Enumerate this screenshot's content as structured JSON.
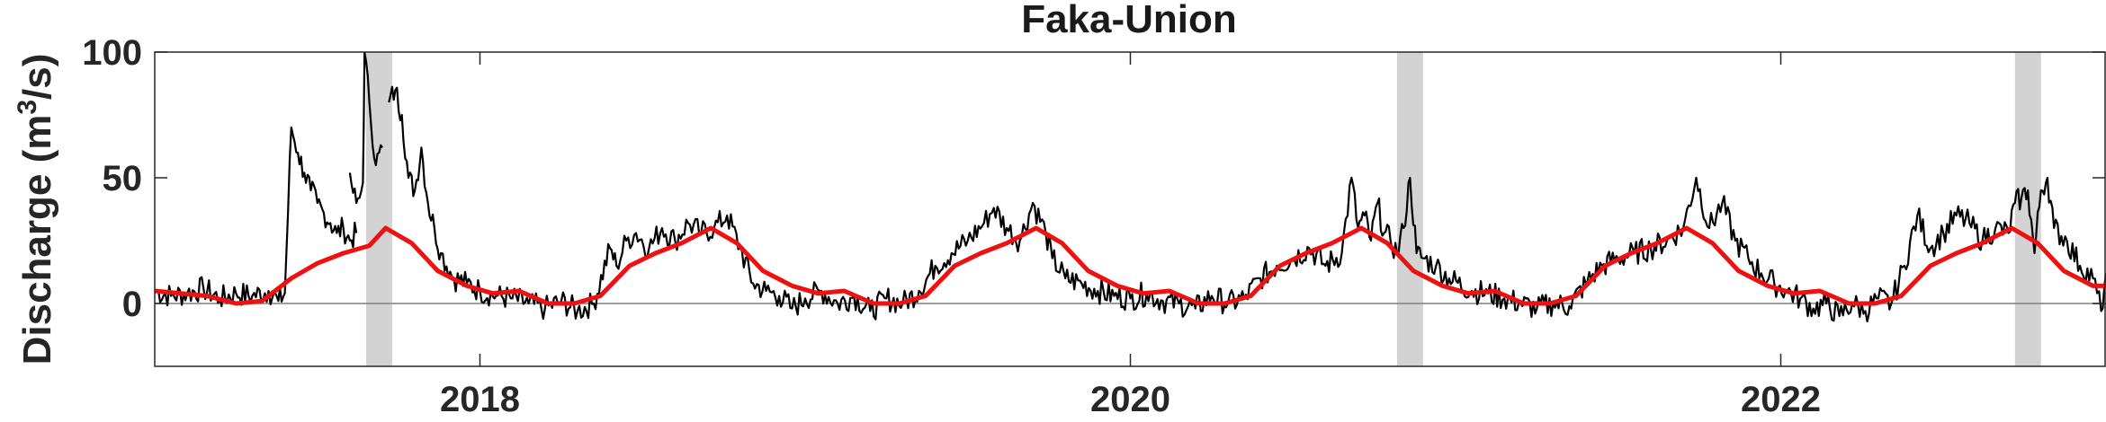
{
  "chart_data": {
    "type": "line",
    "title": "Faka-Union",
    "xlabel": "",
    "ylabel": "Discharge (m",
    "ylabel_sup": "3",
    "ylabel_tail": "/s)",
    "xlim": [
      2017.0,
      2023.0
    ],
    "ylim": [
      -25,
      100
    ],
    "x_ticks": [
      2018,
      2020,
      2022
    ],
    "x_tick_labels": [
      "2018",
      "2020",
      "2022"
    ],
    "y_ticks": [
      0,
      50,
      100
    ],
    "y_tick_labels": [
      "0",
      "50",
      "100"
    ],
    "grid": false,
    "legend": "none",
    "zero_line": true,
    "shaded_periods": [
      {
        "start": 2017.65,
        "end": 2017.73
      },
      {
        "start": 2020.82,
        "end": 2020.9
      },
      {
        "start": 2022.72,
        "end": 2022.8
      }
    ],
    "colors": {
      "observed": "#000000",
      "seasonal": "#ee1111",
      "shade": "#d3d3d3",
      "axes": "#262626",
      "zero_line": "#7f7f7f"
    },
    "series": [
      {
        "id": "observed",
        "style": "noisy",
        "points": [
          [
            2017.0,
            5
          ],
          [
            2017.05,
            3
          ],
          [
            2017.1,
            4
          ],
          [
            2017.15,
            6
          ],
          [
            2017.2,
            2
          ],
          [
            2017.25,
            4
          ],
          [
            2017.3,
            3
          ],
          [
            2017.35,
            5
          ],
          [
            2017.38,
            1
          ],
          [
            2017.4,
            4
          ],
          [
            2017.42,
            70
          ],
          [
            2017.44,
            60
          ],
          [
            2017.46,
            52
          ],
          [
            2017.48,
            45
          ],
          [
            2017.5,
            40
          ],
          [
            2017.52,
            36
          ],
          [
            2017.54,
            32
          ],
          [
            2017.56,
            28
          ],
          [
            2017.58,
            30
          ],
          [
            2017.6,
            25
          ],
          [
            2017.62,
            28
          ],
          null,
          [
            2017.6,
            52
          ],
          [
            2017.61,
            44
          ],
          [
            2017.62,
            40
          ],
          [
            2017.63,
            42
          ],
          [
            2017.64,
            48
          ],
          [
            2017.645,
            100
          ],
          [
            2017.66,
            80
          ],
          [
            2017.68,
            55
          ],
          [
            2017.69,
            60
          ],
          [
            2017.7,
            62
          ],
          null,
          [
            2017.72,
            80
          ],
          [
            2017.74,
            85
          ],
          [
            2017.76,
            75
          ],
          [
            2017.78,
            50
          ],
          [
            2017.8,
            45
          ],
          [
            2017.82,
            62
          ],
          [
            2017.84,
            40
          ],
          [
            2017.86,
            30
          ],
          [
            2017.88,
            20
          ],
          [
            2017.92,
            10
          ],
          [
            2017.96,
            8
          ],
          [
            2018.0,
            5
          ],
          [
            2018.05,
            3
          ],
          [
            2018.1,
            2
          ],
          [
            2018.15,
            0
          ],
          [
            2018.2,
            -2
          ],
          [
            2018.25,
            1
          ],
          [
            2018.3,
            -3
          ],
          [
            2018.35,
            0
          ],
          [
            2018.4,
            22
          ],
          [
            2018.42,
            15
          ],
          [
            2018.45,
            25
          ],
          [
            2018.48,
            28
          ],
          [
            2018.52,
            22
          ],
          [
            2018.56,
            30
          ],
          [
            2018.6,
            25
          ],
          [
            2018.64,
            32
          ],
          [
            2018.68,
            28
          ],
          [
            2018.72,
            30
          ],
          [
            2018.76,
            35
          ],
          [
            2018.8,
            22
          ],
          [
            2018.84,
            8
          ],
          [
            2018.88,
            5
          ],
          [
            2018.92,
            3
          ],
          [
            2018.96,
            -2
          ],
          [
            2019.0,
            2
          ],
          [
            2019.05,
            5
          ],
          [
            2019.1,
            0
          ],
          [
            2019.15,
            3
          ],
          [
            2019.2,
            -3
          ],
          [
            2019.25,
            2
          ],
          [
            2019.3,
            0
          ],
          [
            2019.35,
            5
          ],
          [
            2019.4,
            15
          ],
          [
            2019.45,
            20
          ],
          [
            2019.5,
            25
          ],
          [
            2019.55,
            32
          ],
          [
            2019.58,
            38
          ],
          [
            2019.62,
            30
          ],
          [
            2019.66,
            25
          ],
          [
            2019.7,
            40
          ],
          [
            2019.74,
            28
          ],
          [
            2019.76,
            18
          ],
          [
            2019.8,
            10
          ],
          [
            2019.85,
            8
          ],
          [
            2019.9,
            5
          ],
          [
            2019.95,
            3
          ],
          [
            2020.0,
            2
          ],
          [
            2020.05,
            4
          ],
          [
            2020.1,
            1
          ],
          [
            2020.15,
            0
          ],
          [
            2020.2,
            -2
          ],
          [
            2020.25,
            3
          ],
          [
            2020.3,
            0
          ],
          [
            2020.35,
            2
          ],
          [
            2020.4,
            10
          ],
          [
            2020.45,
            15
          ],
          [
            2020.5,
            18
          ],
          [
            2020.55,
            22
          ],
          [
            2020.6,
            15
          ],
          [
            2020.65,
            20
          ],
          [
            2020.68,
            50
          ],
          [
            2020.7,
            30
          ],
          [
            2020.72,
            35
          ],
          [
            2020.74,
            25
          ],
          [
            2020.76,
            40
          ],
          [
            2020.78,
            28
          ],
          [
            2020.8,
            25
          ],
          [
            2020.82,
            20
          ],
          [
            2020.84,
            30
          ],
          [
            2020.86,
            50
          ],
          [
            2020.88,
            20
          ],
          [
            2020.9,
            18
          ],
          [
            2020.94,
            15
          ],
          [
            2020.98,
            10
          ],
          [
            2021.05,
            5
          ],
          [
            2021.1,
            4
          ],
          [
            2021.15,
            2
          ],
          [
            2021.2,
            0
          ],
          [
            2021.25,
            -2
          ],
          [
            2021.3,
            0
          ],
          [
            2021.35,
            -1
          ],
          [
            2021.4,
            8
          ],
          [
            2021.45,
            15
          ],
          [
            2021.5,
            18
          ],
          [
            2021.55,
            20
          ],
          [
            2021.6,
            22
          ],
          [
            2021.65,
            25
          ],
          [
            2021.7,
            30
          ],
          [
            2021.74,
            50
          ],
          [
            2021.78,
            30
          ],
          [
            2021.82,
            40
          ],
          [
            2021.86,
            25
          ],
          [
            2021.9,
            18
          ],
          [
            2021.94,
            12
          ],
          [
            2021.98,
            8
          ],
          [
            2022.02,
            5
          ],
          [
            2022.06,
            2
          ],
          [
            2022.1,
            -2
          ],
          [
            2022.14,
            0
          ],
          [
            2022.18,
            -5
          ],
          [
            2022.22,
            0
          ],
          [
            2022.26,
            -3
          ],
          [
            2022.3,
            2
          ],
          [
            2022.34,
            0
          ],
          [
            2022.38,
            15
          ],
          [
            2022.42,
            35
          ],
          [
            2022.46,
            22
          ],
          [
            2022.5,
            28
          ],
          [
            2022.54,
            35
          ],
          [
            2022.58,
            32
          ],
          [
            2022.62,
            25
          ],
          [
            2022.66,
            30
          ],
          [
            2022.7,
            28
          ],
          [
            2022.72,
            40
          ],
          [
            2022.74,
            42
          ],
          [
            2022.76,
            45
          ],
          [
            2022.78,
            20
          ],
          [
            2022.8,
            45
          ],
          [
            2022.82,
            50
          ],
          [
            2022.84,
            30
          ],
          [
            2022.88,
            25
          ],
          [
            2022.92,
            15
          ],
          [
            2022.96,
            10
          ],
          [
            2022.985,
            -3
          ],
          [
            2023.0,
            12
          ]
        ]
      },
      {
        "id": "seasonal",
        "style": "smooth",
        "points": [
          [
            2017.0,
            5
          ],
          [
            2017.08,
            4
          ],
          [
            2017.16,
            3
          ],
          [
            2017.25,
            0
          ],
          [
            2017.33,
            1
          ],
          [
            2017.42,
            10
          ],
          [
            2017.5,
            16
          ],
          [
            2017.58,
            20
          ],
          [
            2017.66,
            23
          ],
          [
            2017.71,
            30
          ],
          [
            2017.79,
            24
          ],
          [
            2017.87,
            13
          ],
          [
            2017.96,
            7
          ],
          [
            2018.04,
            4
          ],
          [
            2018.12,
            5
          ],
          [
            2018.21,
            0
          ],
          [
            2018.29,
            0
          ],
          [
            2018.37,
            3
          ],
          [
            2018.46,
            15
          ],
          [
            2018.54,
            20
          ],
          [
            2018.62,
            24
          ],
          [
            2018.71,
            30
          ],
          [
            2018.79,
            24
          ],
          [
            2018.87,
            13
          ],
          [
            2018.96,
            7
          ],
          [
            2019.04,
            4
          ],
          [
            2019.12,
            5
          ],
          [
            2019.21,
            0
          ],
          [
            2019.29,
            0
          ],
          [
            2019.37,
            3
          ],
          [
            2019.46,
            15
          ],
          [
            2019.54,
            20
          ],
          [
            2019.62,
            24
          ],
          [
            2019.71,
            30
          ],
          [
            2019.79,
            24
          ],
          [
            2019.87,
            13
          ],
          [
            2019.96,
            7
          ],
          [
            2020.04,
            4
          ],
          [
            2020.12,
            5
          ],
          [
            2020.21,
            0
          ],
          [
            2020.29,
            0
          ],
          [
            2020.37,
            3
          ],
          [
            2020.46,
            15
          ],
          [
            2020.54,
            20
          ],
          [
            2020.62,
            24
          ],
          [
            2020.71,
            30
          ],
          [
            2020.79,
            24
          ],
          [
            2020.87,
            13
          ],
          [
            2020.96,
            7
          ],
          [
            2021.04,
            4
          ],
          [
            2021.12,
            5
          ],
          [
            2021.21,
            0
          ],
          [
            2021.29,
            0
          ],
          [
            2021.37,
            3
          ],
          [
            2021.46,
            15
          ],
          [
            2021.54,
            20
          ],
          [
            2021.62,
            24
          ],
          [
            2021.71,
            30
          ],
          [
            2021.79,
            24
          ],
          [
            2021.87,
            13
          ],
          [
            2021.96,
            7
          ],
          [
            2022.04,
            4
          ],
          [
            2022.12,
            5
          ],
          [
            2022.21,
            0
          ],
          [
            2022.29,
            0
          ],
          [
            2022.37,
            3
          ],
          [
            2022.46,
            15
          ],
          [
            2022.54,
            20
          ],
          [
            2022.62,
            24
          ],
          [
            2022.71,
            30
          ],
          [
            2022.79,
            24
          ],
          [
            2022.87,
            13
          ],
          [
            2022.96,
            7
          ],
          [
            2023.0,
            7
          ]
        ]
      }
    ]
  }
}
